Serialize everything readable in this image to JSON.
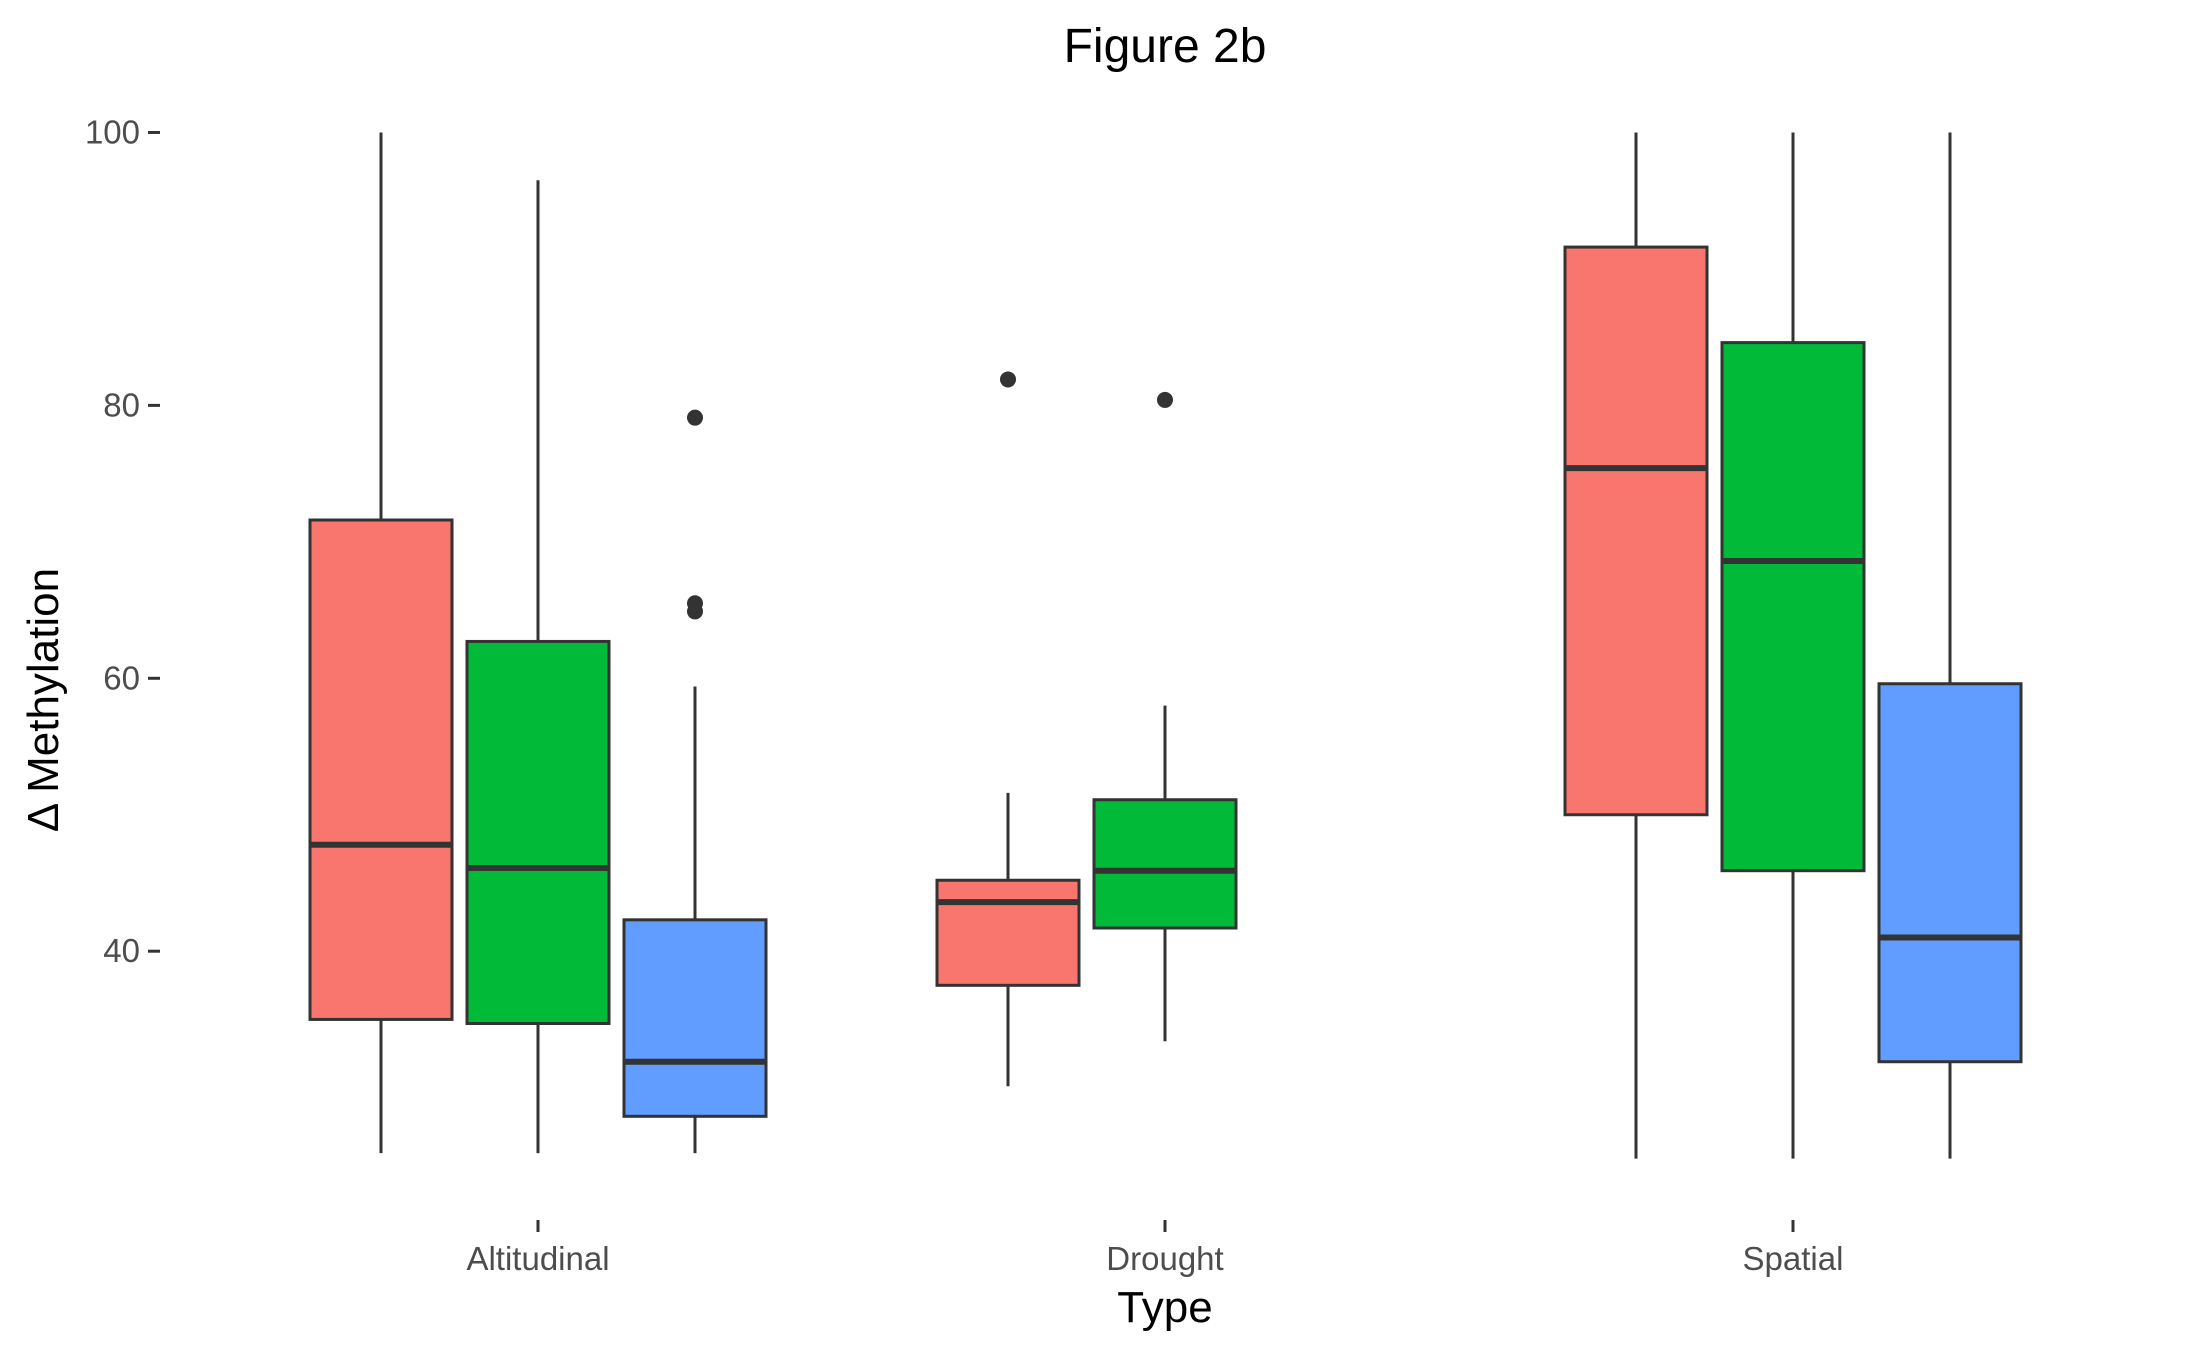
{
  "chart_data": {
    "type": "box",
    "title": "Figure 2b",
    "xlabel": "Type",
    "ylabel": "Δ Methylation",
    "categories": [
      "Altitudinal",
      "Drought",
      "Spatial"
    ],
    "ylim": [
      22.5,
      101.5
    ],
    "yticks": [
      40,
      60,
      80,
      100
    ],
    "grid": false,
    "legend": "none",
    "groups_per_category": 3,
    "colors": [
      "#F8766D",
      "#00BA38",
      "#619CFF"
    ],
    "boxes": [
      {
        "category": "Altitudinal",
        "group": 0,
        "whisker_low": 25.2,
        "q1": 35.0,
        "median": 47.8,
        "q3": 71.6,
        "whisker_high": 100.0,
        "outliers": []
      },
      {
        "category": "Altitudinal",
        "group": 1,
        "whisker_low": 25.2,
        "q1": 34.7,
        "median": 46.1,
        "q3": 62.7,
        "whisker_high": 96.5,
        "outliers": []
      },
      {
        "category": "Altitudinal",
        "group": 2,
        "whisker_low": 25.2,
        "q1": 27.9,
        "median": 31.9,
        "q3": 42.3,
        "whisker_high": 59.4,
        "outliers": [
          79.1,
          65.5,
          64.9
        ]
      },
      {
        "category": "Drought",
        "group": 0,
        "whisker_low": 30.1,
        "q1": 37.5,
        "median": 43.6,
        "q3": 45.2,
        "whisker_high": 51.6,
        "outliers": [
          81.9
        ]
      },
      {
        "category": "Drought",
        "group": 1,
        "whisker_low": 33.4,
        "q1": 41.7,
        "median": 45.9,
        "q3": 51.1,
        "whisker_high": 58.0,
        "outliers": [
          80.4
        ]
      },
      {
        "category": "Spatial",
        "group": 0,
        "whisker_low": 24.8,
        "q1": 50.0,
        "median": 75.4,
        "q3": 91.6,
        "whisker_high": 100.0,
        "outliers": []
      },
      {
        "category": "Spatial",
        "group": 1,
        "whisker_low": 24.8,
        "q1": 45.9,
        "median": 68.6,
        "q3": 84.6,
        "whisker_high": 100.0,
        "outliers": []
      },
      {
        "category": "Spatial",
        "group": 2,
        "whisker_low": 24.8,
        "q1": 31.9,
        "median": 41.0,
        "q3": 59.6,
        "whisker_high": 100.0,
        "outliers": []
      }
    ]
  }
}
